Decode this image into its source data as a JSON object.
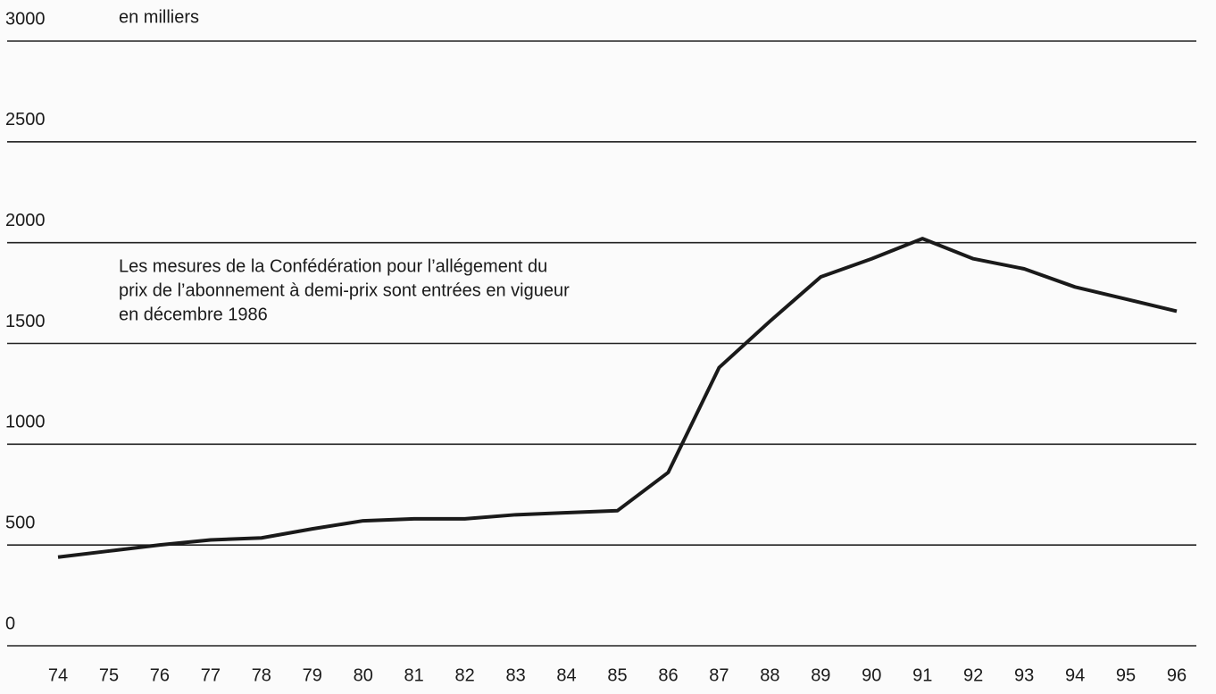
{
  "chart_data": {
    "type": "line",
    "y_label": "en milliers",
    "annotation": [
      "Les mesures de la Confédération pour l’allégement du",
      "prix de l’abonnement à demi-prix sont entrées en vigueur",
      "en décembre 1986"
    ],
    "categories": [
      "74",
      "75",
      "76",
      "77",
      "78",
      "79",
      "80",
      "81",
      "82",
      "83",
      "84",
      "85",
      "86",
      "87",
      "88",
      "89",
      "90",
      "91",
      "92",
      "93",
      "94",
      "95",
      "96"
    ],
    "series": [
      {
        "name": null,
        "color": "#1a1a1a",
        "values": [
          440,
          470,
          500,
          525,
          535,
          580,
          620,
          630,
          630,
          650,
          660,
          670,
          860,
          1380,
          1610,
          1830,
          1920,
          2020,
          1920,
          1870,
          1780,
          1720,
          1660
        ]
      }
    ],
    "ylim": [
      0,
      3000
    ],
    "yticks": [
      0,
      500,
      1000,
      1500,
      2000,
      2500,
      3000
    ],
    "grid": true
  }
}
